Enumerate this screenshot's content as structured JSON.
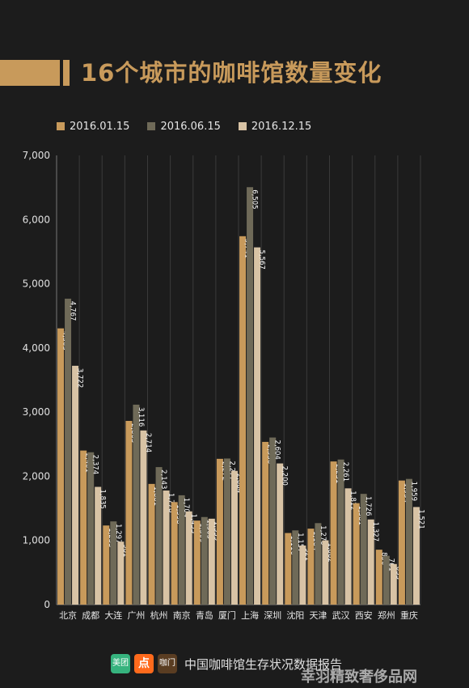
{
  "title": "16个城市的咖啡馆数量变化",
  "legend": [
    {
      "label": "2016.01.15",
      "color": "#c89a5b"
    },
    {
      "label": "2016.06.15",
      "color": "#6f6a58"
    },
    {
      "label": "2016.12.15",
      "color": "#d8c3a5"
    }
  ],
  "chart_data": {
    "type": "bar",
    "categories": [
      "北京",
      "成都",
      "大连",
      "广州",
      "杭州",
      "南京",
      "青岛",
      "厦门",
      "上海",
      "深圳",
      "沈阳",
      "天津",
      "武汉",
      "西安",
      "郑州",
      "重庆"
    ],
    "series": [
      {
        "name": "2016.01.15",
        "color": "#c89a5b",
        "values": [
          4305,
          2401,
          1233,
          2863,
          1881,
          1598,
          1309,
          2272,
          5741,
          2536,
          1116,
          1184,
          2231,
          1581,
          856,
          1934
        ]
      },
      {
        "name": "2016.06.15",
        "color": "#6f6a58",
        "values": [
          4767,
          2374,
          1297,
          3116,
          2143,
          1704,
          1365,
          2277,
          6505,
          2604,
          1157,
          1270,
          2261,
          1726,
          761,
          1959
        ]
      },
      {
        "name": "2016.12.15",
        "color": "#d8c3a5",
        "values": [
          3722,
          1835,
          981,
          2714,
          1778,
          1453,
          1339,
          2084,
          5567,
          2200,
          921,
          1002,
          1812,
          1327,
          633,
          1521
        ]
      }
    ],
    "data_labels": [
      [
        "4,305",
        "4,767",
        "3,722"
      ],
      [
        "2,401",
        "2,374",
        "1,835"
      ],
      [
        "1,233",
        "1,297",
        "981"
      ],
      [
        "2,863",
        "3,116",
        "2,714"
      ],
      [
        "1,881",
        "2,143",
        "1,778"
      ],
      [
        "1,598",
        "1,704",
        "1,453"
      ],
      [
        "1,309",
        "1,365",
        "1,339"
      ],
      [
        "2,272",
        "2,277",
        "2,084"
      ],
      [
        "5,741",
        "6,505",
        "5,567"
      ],
      [
        "2,536",
        "2,604",
        "2,200"
      ],
      [
        "1,116",
        "1,157",
        "921"
      ],
      [
        "1,184",
        "1,270",
        "1,002"
      ],
      [
        "2,231",
        "2,261",
        "1,812"
      ],
      [
        "1,581",
        "1,726",
        "1,327"
      ],
      [
        "856",
        "761",
        "633"
      ],
      [
        "1,934",
        "1,959",
        "1,521"
      ]
    ],
    "ylim": [
      0,
      7000
    ],
    "yticks": [
      0,
      1000,
      2000,
      3000,
      4000,
      5000,
      6000,
      7000
    ],
    "ytick_labels": [
      "0",
      "1,000",
      "2,000",
      "3,000",
      "4,000",
      "5,000",
      "6,000",
      "7,000"
    ],
    "grid": "vertical",
    "legend_position": "top-left"
  },
  "footer": {
    "logos": [
      {
        "name": "meituan",
        "text": "美团"
      },
      {
        "name": "dianping",
        "text": "点"
      },
      {
        "name": "kafei",
        "text": "咖门"
      }
    ],
    "text": "中国咖啡馆生存状况数据报告"
  },
  "watermark": "幸羽精致奢侈品网"
}
